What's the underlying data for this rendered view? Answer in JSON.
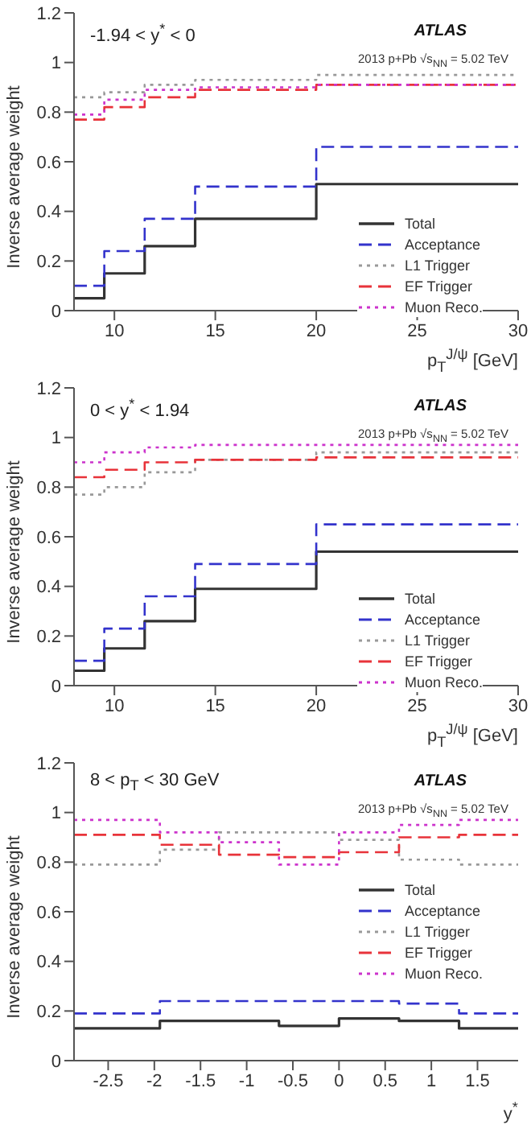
{
  "chart_data": [
    {
      "type": "step",
      "annotations": [
        "-1.94 < y$^{*}$ < 0",
        "ATLAS",
        "2013 p+Pb √s$_{NN}$ = 5.02 TeV"
      ],
      "xlabel": "p$_{T}$$^{J/ψ}$ [GeV]",
      "ylabel": "Inverse average weight",
      "x": [
        8,
        9.5,
        11.5,
        14,
        20,
        30
      ],
      "xlim": [
        8,
        30
      ],
      "xticks": [
        10,
        15,
        20,
        25,
        30
      ],
      "ylim": [
        0,
        1.2
      ],
      "yticks": [
        0,
        0.2,
        0.4,
        0.6,
        0.8,
        1,
        1.2
      ],
      "legend": "bottom right",
      "series": [
        {
          "name": "Total",
          "color": "#333333",
          "line_style": "solid",
          "values": [
            0.05,
            0.15,
            0.26,
            0.37,
            0.51,
            0.51
          ]
        },
        {
          "name": "Acceptance",
          "color": "#3333cc",
          "line_style": "dashed",
          "values": [
            0.1,
            0.24,
            0.37,
            0.5,
            0.66,
            0.66
          ]
        },
        {
          "name": "L1 Trigger",
          "color": "#999999",
          "line_style": "dotted",
          "values": [
            0.86,
            0.88,
            0.91,
            0.93,
            0.95,
            0.95
          ]
        },
        {
          "name": "EF Trigger",
          "color": "#e8333a",
          "line_style": "dashed",
          "values": [
            0.77,
            0.82,
            0.86,
            0.89,
            0.91,
            0.91
          ]
        },
        {
          "name": "Muon Reco.",
          "color": "#cc33cc",
          "line_style": "dotted",
          "values": [
            0.79,
            0.85,
            0.89,
            0.9,
            0.91,
            0.91
          ]
        }
      ]
    },
    {
      "type": "step",
      "annotations": [
        "0 < y$^{*}$ < 1.94",
        "ATLAS",
        "2013 p+Pb √s$_{NN}$ = 5.02 TeV"
      ],
      "xlabel": "p$_{T}$$^{J/ψ}$ [GeV]",
      "ylabel": "Inverse average weight",
      "x": [
        8,
        9.5,
        11.5,
        14,
        20,
        30
      ],
      "xlim": [
        8,
        30
      ],
      "xticks": [
        10,
        15,
        20,
        25,
        30
      ],
      "ylim": [
        0,
        1.2
      ],
      "yticks": [
        0,
        0.2,
        0.4,
        0.6,
        0.8,
        1,
        1.2
      ],
      "legend": "bottom right",
      "series": [
        {
          "name": "Total",
          "color": "#333333",
          "line_style": "solid",
          "values": [
            0.06,
            0.15,
            0.26,
            0.39,
            0.54,
            0.54
          ]
        },
        {
          "name": "Acceptance",
          "color": "#3333cc",
          "line_style": "dashed",
          "values": [
            0.1,
            0.23,
            0.36,
            0.49,
            0.65,
            0.65
          ]
        },
        {
          "name": "L1 Trigger",
          "color": "#999999",
          "line_style": "dotted",
          "values": [
            0.77,
            0.8,
            0.86,
            0.91,
            0.94,
            0.94
          ]
        },
        {
          "name": "EF Trigger",
          "color": "#e8333a",
          "line_style": "dashed",
          "values": [
            0.84,
            0.87,
            0.9,
            0.91,
            0.92,
            0.92
          ]
        },
        {
          "name": "Muon Reco.",
          "color": "#cc33cc",
          "line_style": "dotted",
          "values": [
            0.9,
            0.94,
            0.96,
            0.97,
            0.97,
            0.97
          ]
        }
      ]
    },
    {
      "type": "step",
      "annotations": [
        "8 < p$_{T}$ < 30 GeV",
        "ATLAS",
        "2013 p+Pb √s$_{NN}$ = 5.02 TeV"
      ],
      "xlabel": "y$^{*}$",
      "ylabel": "Inverse average weight",
      "x": [
        -2.87,
        -1.94,
        -1.3,
        -0.65,
        0,
        0.65,
        1.3,
        1.94
      ],
      "xlim": [
        -2.87,
        1.94
      ],
      "xticks": [
        -2.5,
        -2,
        -1.5,
        -1,
        -0.5,
        0,
        0.5,
        1,
        1.5
      ],
      "ylim": [
        0,
        1.2
      ],
      "yticks": [
        0,
        0.2,
        0.4,
        0.6,
        0.8,
        1,
        1.2
      ],
      "legend": "right",
      "series": [
        {
          "name": "Total",
          "color": "#333333",
          "line_style": "solid",
          "values": [
            0.13,
            0.16,
            0.16,
            0.14,
            0.17,
            0.16,
            0.13,
            0.13
          ]
        },
        {
          "name": "Acceptance",
          "color": "#3333cc",
          "line_style": "dashed",
          "values": [
            0.19,
            0.24,
            0.24,
            0.24,
            0.24,
            0.23,
            0.19,
            0.19
          ]
        },
        {
          "name": "L1 Trigger",
          "color": "#999999",
          "line_style": "dotted",
          "values": [
            0.79,
            0.85,
            0.92,
            0.92,
            0.89,
            0.81,
            0.79,
            0.79
          ]
        },
        {
          "name": "EF Trigger",
          "color": "#e8333a",
          "line_style": "dashed",
          "values": [
            0.91,
            0.87,
            0.83,
            0.82,
            0.84,
            0.9,
            0.91,
            0.91
          ]
        },
        {
          "name": "Muon Reco.",
          "color": "#cc33cc",
          "line_style": "dotted",
          "values": [
            0.97,
            0.92,
            0.88,
            0.79,
            0.92,
            0.95,
            0.97,
            0.97
          ]
        }
      ]
    }
  ]
}
